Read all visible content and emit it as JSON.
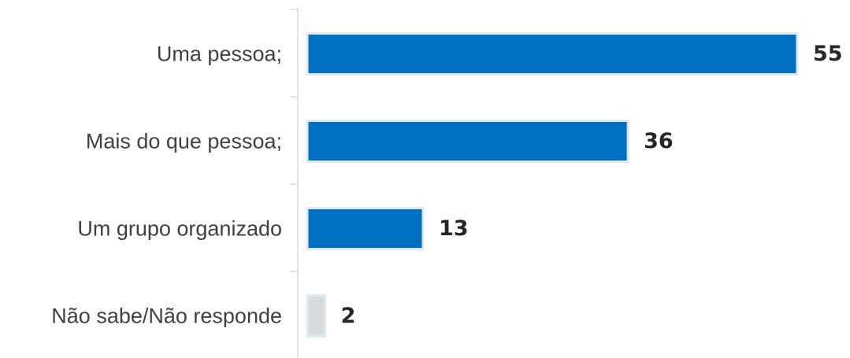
{
  "chart_data": {
    "type": "bar",
    "orientation": "horizontal",
    "categories": [
      "Uma pessoa;",
      "Mais do que pessoa;",
      "Um grupo organizado",
      "Não sabe/Não responde"
    ],
    "values": [
      55,
      36,
      13,
      2
    ],
    "value_labels": [
      "55",
      "36",
      "13",
      "2"
    ],
    "bar_colors": [
      "#0070C0",
      "#0070C0",
      "#0070C0",
      "#D6DCDC"
    ],
    "bar_outline_color": "#DEEAF4",
    "axis_color": "#D9D9D9",
    "xlim": [
      0,
      55
    ],
    "title": "",
    "xlabel": "",
    "ylabel": "",
    "grid": false,
    "legend": "none"
  }
}
